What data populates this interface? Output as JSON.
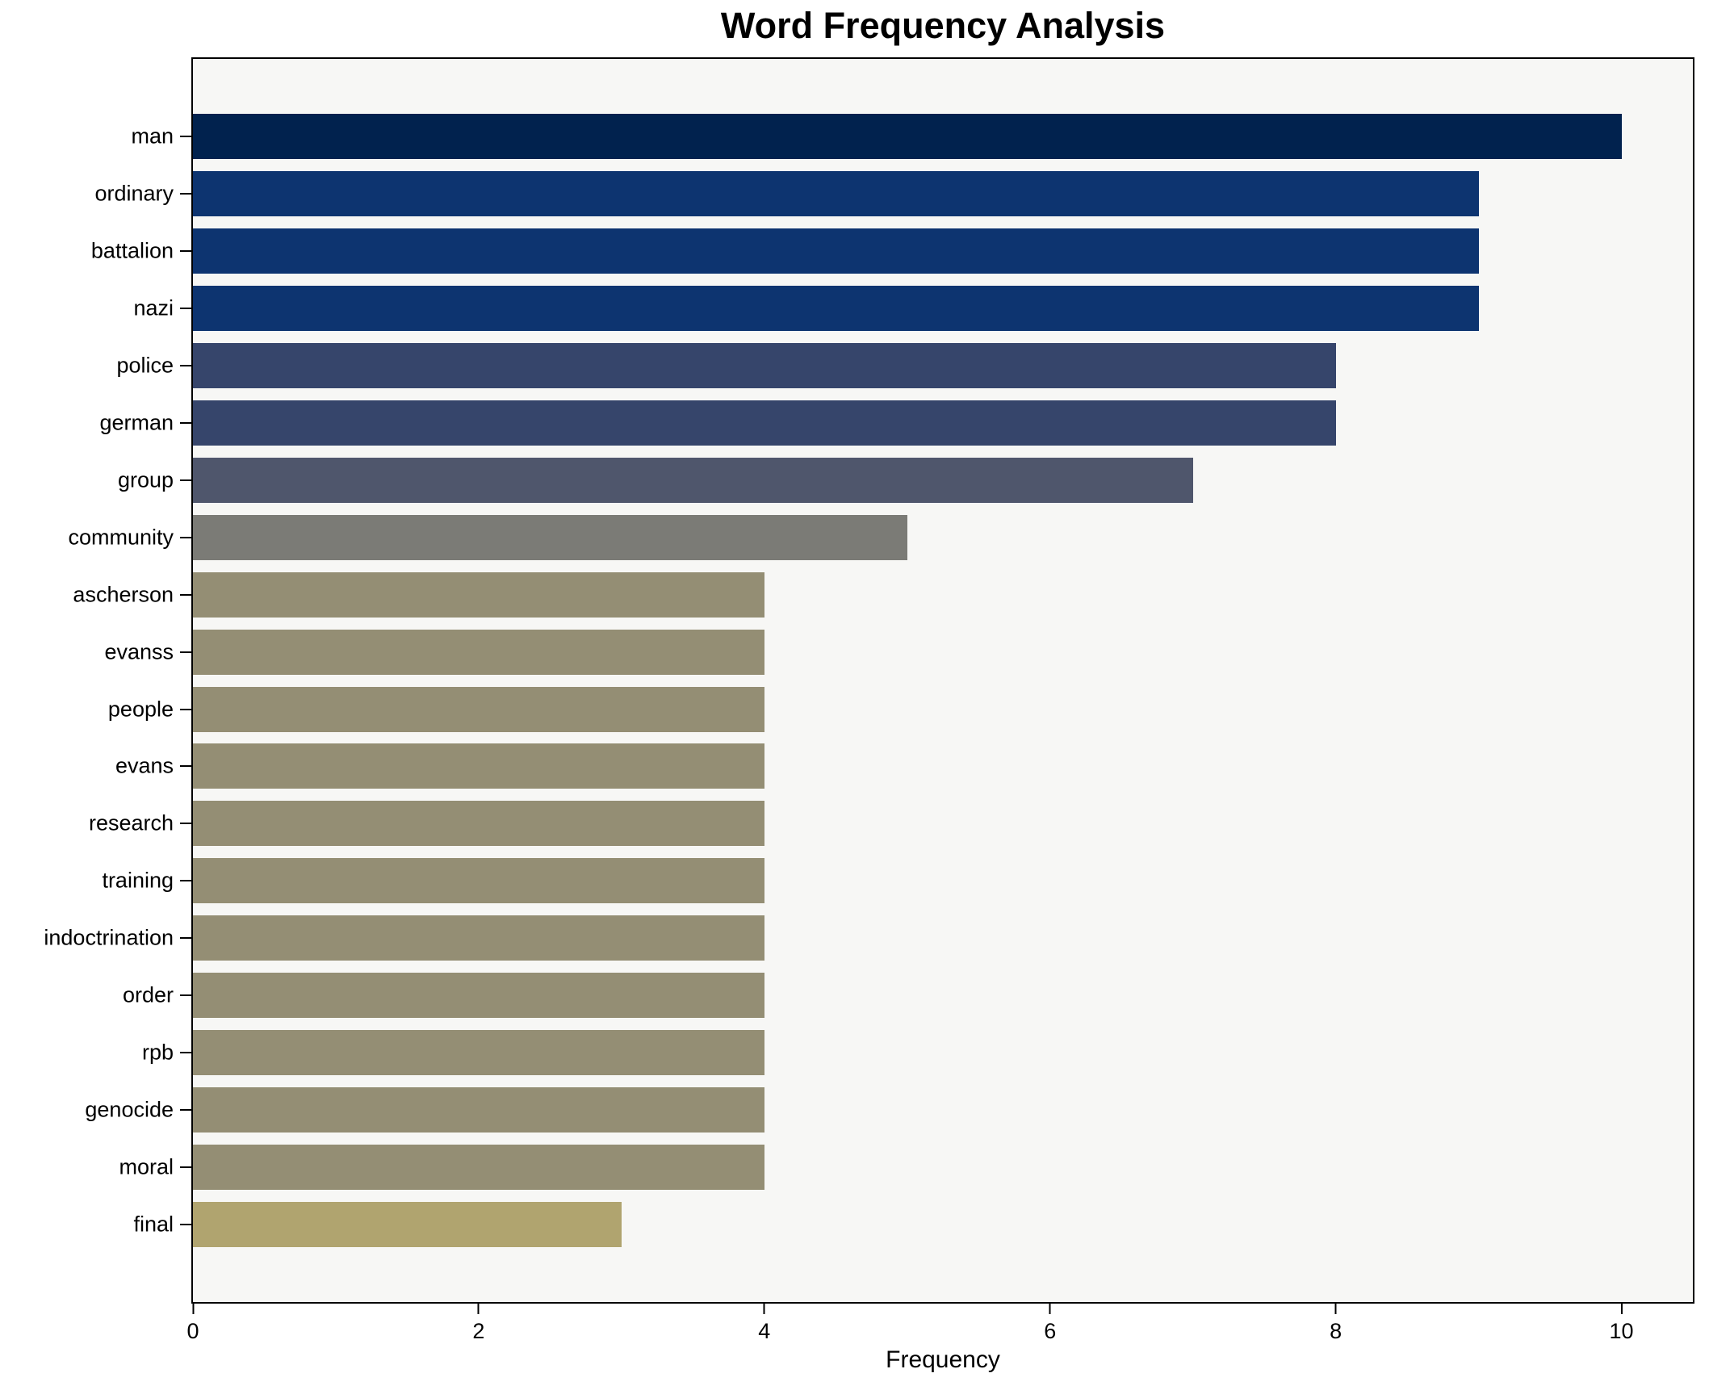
{
  "chart_data": {
    "type": "bar",
    "orientation": "horizontal",
    "title": "Word Frequency Analysis",
    "xlabel": "Frequency",
    "ylabel": "",
    "categories": [
      "man",
      "ordinary",
      "battalion",
      "nazi",
      "police",
      "german",
      "group",
      "community",
      "ascherson",
      "evanss",
      "people",
      "evans",
      "research",
      "training",
      "indoctrination",
      "order",
      "rpb",
      "genocide",
      "moral",
      "final"
    ],
    "values": [
      10,
      9,
      9,
      9,
      8,
      8,
      7,
      5,
      4,
      4,
      4,
      4,
      4,
      4,
      4,
      4,
      4,
      4,
      4,
      3
    ],
    "bar_colors": [
      "#01224e",
      "#0d3470",
      "#0d3470",
      "#0d3470",
      "#36456b",
      "#36456b",
      "#4f566c",
      "#7b7b76",
      "#948e74",
      "#948e74",
      "#948e74",
      "#948e74",
      "#948e74",
      "#948e74",
      "#948e74",
      "#948e74",
      "#948e74",
      "#948e74",
      "#948e74",
      "#b0a46f"
    ],
    "xlim": [
      0,
      10.5
    ],
    "xticks": [
      0,
      2,
      4,
      6,
      8,
      10
    ],
    "grid": false,
    "legend_position": "none",
    "plot_background": "#f7f7f5",
    "figure_background": "#ffffff",
    "spine_color": "#000000",
    "text_color": "#000000"
  }
}
